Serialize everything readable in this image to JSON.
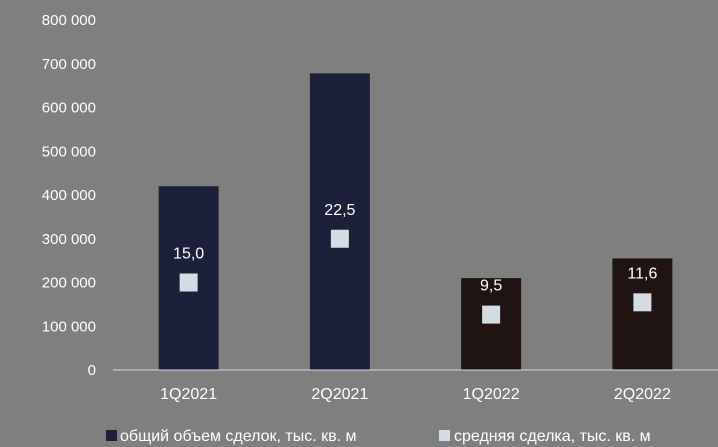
{
  "chart_data": {
    "type": "bar",
    "categories": [
      "1Q2021",
      "2Q2021",
      "1Q2022",
      "2Q2022"
    ],
    "series": [
      {
        "name": "общий объем сделок, тыс. кв. м",
        "kind": "bar",
        "values": [
          420000,
          678000,
          210000,
          255000
        ],
        "colors": [
          "#1c2039",
          "#1c2039",
          "#1f1412",
          "#1f1412"
        ]
      },
      {
        "name": "средняя сделка, тыс. кв. м",
        "kind": "marker",
        "values": [
          15.0,
          22.5,
          9.5,
          11.6
        ],
        "labels": [
          "15,0",
          "22,5",
          "9,5",
          "11,6"
        ],
        "color": "#d6dce4"
      }
    ],
    "ylim": [
      0,
      800000
    ],
    "y_tick_labels": [
      "0",
      "100 000",
      "200 000",
      "300 000",
      "400 000",
      "500 000",
      "600 000",
      "700 000",
      "800 000"
    ],
    "secondary_ylim": [
      0,
      60
    ],
    "grid": false,
    "legend_position": "bottom",
    "legend_swatch_colors": [
      "#1c2039",
      "#d6dce4"
    ]
  }
}
